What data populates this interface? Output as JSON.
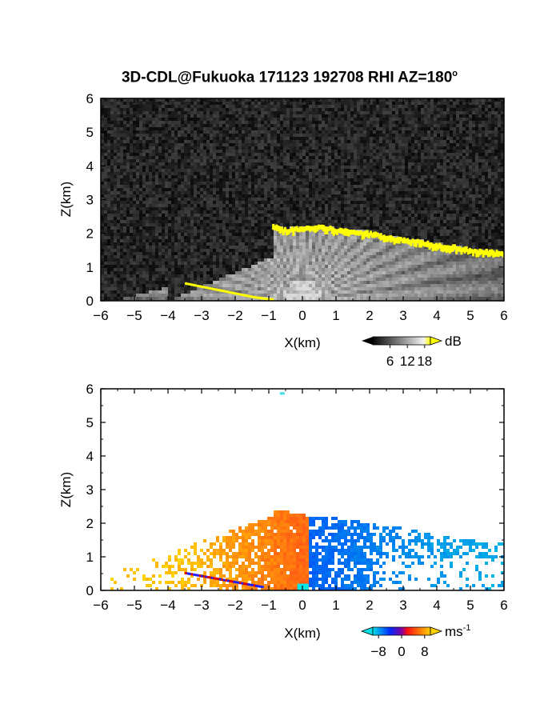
{
  "title_main": "3D-CDL@Fukuoka 171123 192708 RHI AZ=180",
  "title_deg": "o",
  "chart_data": [
    {
      "type": "heatmap",
      "quantity": "backscatter intensity",
      "xlabel": "X(km)",
      "ylabel": "Z(km)",
      "xlim": [
        -6,
        6
      ],
      "ylim": [
        0,
        6
      ],
      "xticks": [
        "-6",
        "-5",
        "-4",
        "-3",
        "-2",
        "-1",
        "0",
        "1",
        "2",
        "3",
        "4",
        "5",
        "6"
      ],
      "yticks": [
        "0",
        "1",
        "2",
        "3",
        "4",
        "5",
        "6"
      ],
      "colorbar": {
        "unit": "dB",
        "ticks": [
          "6",
          "12",
          "18"
        ],
        "range": [
          0,
          20
        ],
        "colors": [
          "#000000",
          "#ffffff",
          "#ffff00"
        ]
      },
      "features": {
        "cloud_top_x": [
          -0.9,
          -0.5,
          0,
          0.5,
          1,
          1.5,
          2,
          2.5,
          3,
          3.5,
          4,
          4.5,
          5,
          5.5,
          6
        ],
        "cloud_top_z": [
          2.25,
          2.15,
          2.2,
          2.25,
          2.15,
          2.1,
          2.05,
          1.95,
          1.85,
          1.8,
          1.7,
          1.65,
          1.55,
          1.5,
          1.45
        ],
        "low_layer_x": [
          -3.5,
          -3.0,
          -2.5,
          -2.0,
          -1.5,
          -1.0
        ],
        "low_layer_z": [
          0.5,
          0.4,
          0.3,
          0.2,
          0.1,
          0.03
        ]
      }
    },
    {
      "type": "heatmap",
      "quantity": "radial velocity",
      "xlabel": "X(km)",
      "ylabel": "Z(km)",
      "xlim": [
        -6,
        6
      ],
      "ylim": [
        0,
        6
      ],
      "xticks": [
        "-6",
        "-5",
        "-4",
        "-3",
        "-2",
        "-1",
        "0",
        "1",
        "2",
        "3",
        "4",
        "5",
        "6"
      ],
      "yticks": [
        "0",
        "1",
        "2",
        "3",
        "4",
        "5",
        "6"
      ],
      "colorbar": {
        "unit": "ms",
        "unit_exp": "-1",
        "ticks": [
          "-8",
          "0",
          "8"
        ],
        "range": [
          -10,
          10
        ],
        "colors": [
          "#00d8e0",
          "#0030ff",
          "#ff1010",
          "#ffd000"
        ]
      },
      "features": {
        "echo_top_x": [
          -0.9,
          -0.5,
          0,
          0.5,
          1,
          1.5,
          2,
          2.5,
          3,
          3.5,
          4,
          4.5,
          5,
          5.5,
          6
        ],
        "echo_top_z": [
          2.35,
          2.35,
          2.25,
          2.2,
          2.15,
          2.1,
          2.0,
          1.95,
          1.85,
          1.75,
          1.65,
          1.55,
          1.5,
          1.45,
          1.45
        ],
        "isolated_echo": {
          "x": -0.6,
          "z": 5.85
        }
      }
    }
  ]
}
